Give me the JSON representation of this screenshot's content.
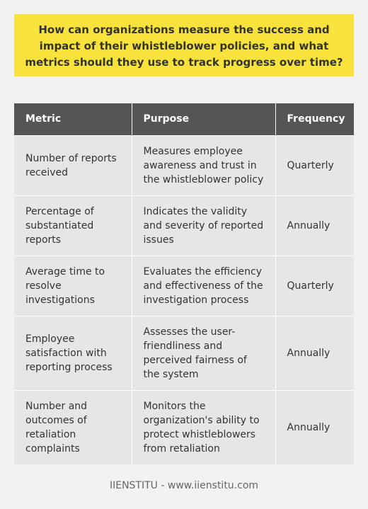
{
  "question": "How can organizations measure the success and impact of their whistleblower policies, and what metrics should they use to track progress over time?",
  "table": {
    "headers": [
      "Metric",
      "Purpose",
      "Frequency"
    ],
    "rows": [
      {
        "metric": "Number of reports received",
        "purpose": "Measures employee awareness and trust in the whistleblower policy",
        "frequency": "Quarterly"
      },
      {
        "metric": "Percentage of substantiated reports",
        "purpose": "Indicates the validity and severity of reported issues",
        "frequency": "Annually"
      },
      {
        "metric": "Average time to resolve investigations",
        "purpose": "Evaluates the efficiency and effectiveness of the investigation process",
        "frequency": "Quarterly"
      },
      {
        "metric": "Employee satisfaction with reporting process",
        "purpose": "Assesses the user-friendliness and perceived fairness of the system",
        "frequency": "Annually"
      },
      {
        "metric": "Number and outcomes of retaliation complaints",
        "purpose": "Monitors the organization's ability to protect whistleblowers from retaliation",
        "frequency": "Annually"
      }
    ]
  },
  "footer": "IIENSTITU - www.iienstitu.com",
  "colors": {
    "question_background": "#f8e33c",
    "header_background": "#555555",
    "cell_background": "#e6e6e6",
    "page_background": "#f2f2f2"
  }
}
